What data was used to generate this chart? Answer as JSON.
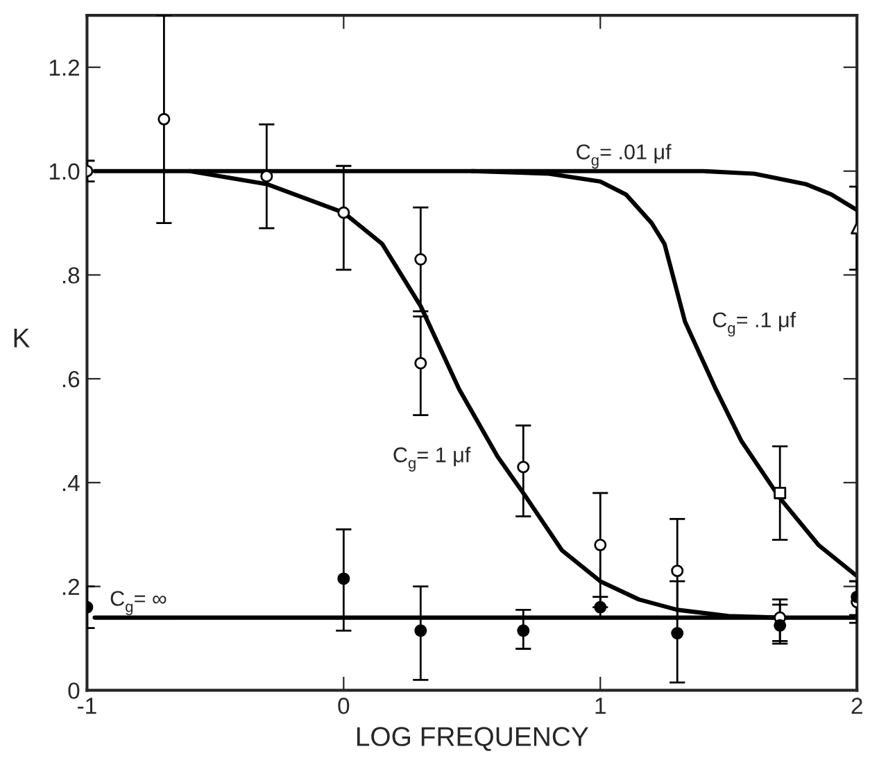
{
  "chart_data": {
    "type": "line",
    "xlabel": "LOG FREQUENCY",
    "ylabel": "K",
    "xlim": [
      -1,
      2
    ],
    "ylim": [
      0,
      1.3
    ],
    "xticks": [
      -1,
      0,
      1,
      2
    ],
    "yticks": [
      0,
      {
        "value": 0.2,
        "label": ".2"
      },
      {
        "value": 0.4,
        "label": ".4"
      },
      {
        "value": 0.6,
        "label": ".6"
      },
      {
        "value": 0.8,
        "label": ".8"
      },
      {
        "value": 1.0,
        "label": "1.0"
      },
      {
        "value": 1.2,
        "label": "1.2"
      }
    ],
    "grid": false,
    "marker": "none",
    "line_style": "solid",
    "series": [
      {
        "color": "#000000",
        "x": [
          -0.97,
          0,
          1,
          1.4,
          1.6,
          1.8,
          1.9,
          2.0
        ],
        "values": [
          1.0,
          1.0,
          1.0,
          1.0,
          0.995,
          0.975,
          0.955,
          0.925
        ]
      },
      {
        "color": "#000000",
        "x": [
          0.5,
          0.8,
          1.0,
          1.1,
          1.2,
          1.25,
          1.33,
          1.45,
          1.55,
          1.7,
          1.85,
          2.0
        ],
        "values": [
          1.0,
          0.995,
          0.98,
          0.955,
          0.9,
          0.86,
          0.71,
          0.58,
          0.48,
          0.37,
          0.28,
          0.22
        ]
      },
      {
        "color": "#000000",
        "x": [
          -0.6,
          -0.3,
          0,
          0.15,
          0.3,
          0.45,
          0.6,
          0.7,
          0.85,
          1.0,
          1.15,
          1.3,
          1.5,
          1.7
        ],
        "values": [
          1.0,
          0.975,
          0.92,
          0.86,
          0.74,
          0.58,
          0.45,
          0.38,
          0.27,
          0.21,
          0.175,
          0.155,
          0.143,
          0.14
        ]
      },
      {
        "color": "#000000",
        "x": [
          -0.97,
          2.0
        ],
        "values": [
          0.14,
          0.14
        ]
      },
      {
        "type": "scatter",
        "marker": "circle",
        "color": "#ffffff",
        "x": [
          -1,
          -0.7,
          -0.3,
          0,
          0.3,
          0.3,
          0.7,
          1.0,
          1.3,
          1.7,
          2.0
        ],
        "values": [
          1.0,
          1.1,
          0.99,
          0.92,
          0.83,
          0.63,
          0.43,
          0.28,
          0.23,
          0.14,
          0.17
        ],
        "errors": [
          [
            0.98,
            1.02
          ],
          [
            0.9,
            1.3
          ],
          [
            0.89,
            1.09
          ],
          [
            0.81,
            1.01
          ],
          [
            0.73,
            0.93
          ],
          [
            0.53,
            0.72
          ],
          [
            0.335,
            0.51
          ],
          [
            0.16,
            0.38
          ],
          [
            0.14,
            0.33
          ],
          [
            0.09,
            0.175
          ],
          [
            0.13,
            0.21
          ]
        ]
      },
      {
        "type": "scatter",
        "marker": "square",
        "color": "#ffffff",
        "x": [
          1.7
        ],
        "values": [
          0.38
        ],
        "errors": [
          [
            0.29,
            0.47
          ]
        ]
      },
      {
        "type": "scatter",
        "marker": "triangle",
        "color": "#ffffff",
        "x": [
          2.0
        ],
        "values": [
          0.89
        ],
        "errors": [
          [
            0.81,
            0.97
          ]
        ]
      },
      {
        "type": "scatter",
        "marker": "circle",
        "color": "#000000",
        "x": [
          -1,
          0,
          0.3,
          0.7,
          1.0,
          1.3,
          1.7,
          2.0
        ],
        "values": [
          0.16,
          0.215,
          0.115,
          0.115,
          0.16,
          0.11,
          0.125,
          0.18
        ],
        "errors": [
          [
            0.12,
            0.2
          ],
          [
            0.115,
            0.31
          ],
          [
            0.02,
            0.2
          ],
          [
            0.08,
            0.155
          ],
          [
            0.14,
            0.18
          ],
          [
            0.015,
            0.21
          ],
          [
            0.095,
            0.165
          ],
          [
            0.145,
            0.21
          ]
        ]
      }
    ],
    "annotations": [
      {
        "text": "C$_{g}$= .01 μf",
        "x": 1.09,
        "y": 1.0
      },
      {
        "text": "C$_{g}$= .1 μf",
        "x": 1.33,
        "y": 0.71
      },
      {
        "text": "C$_{g}$= 1 μf",
        "x": 0.6,
        "y": 0.45
      },
      {
        "text": "C$_{g}$= ∞",
        "x": -0.8,
        "y": 0.14
      }
    ]
  }
}
